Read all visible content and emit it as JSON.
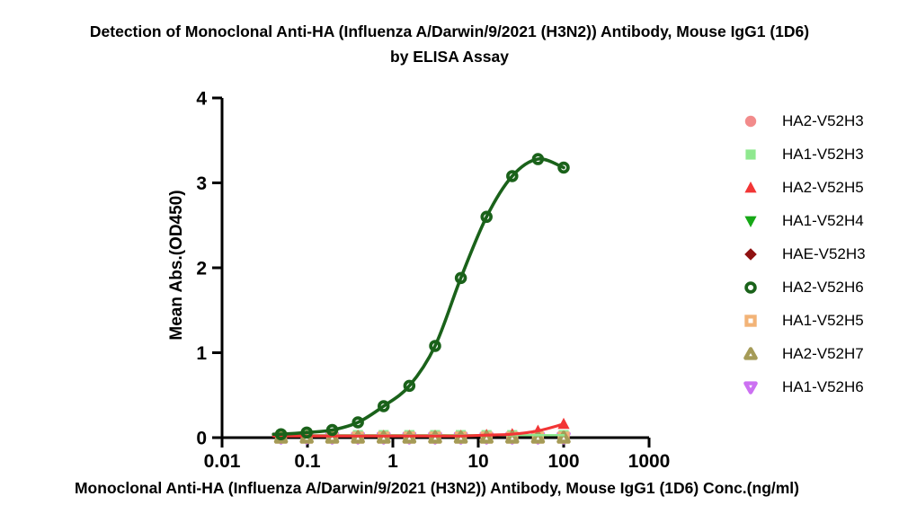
{
  "title": {
    "line1": "Detection of Monoclonal Anti-HA (Influenza A/Darwin/9/2021 (H3N2)) Antibody, Mouse IgG1 (1D6)",
    "line2": "by ELISA Assay"
  },
  "chart_data": {
    "type": "scatter",
    "title": "Detection of Monoclonal Anti-HA (Influenza A/Darwin/9/2021 (H3N2)) Antibody, Mouse IgG1 (1D6) by ELISA Assay",
    "xlabel": "Monoclonal Anti-HA (Influenza A/Darwin/9/2021 (H3N2)) Antibody, Mouse IgG1 (1D6) Conc.(ng/ml)",
    "ylabel": "Mean Abs.(OD450)",
    "x_scale": "log",
    "xlim": [
      0.01,
      1000
    ],
    "ylim": [
      0,
      4
    ],
    "x_ticks": [
      "0.01",
      "0.1",
      "1",
      "10",
      "100",
      "1000"
    ],
    "y_ticks": [
      "0",
      "1",
      "2",
      "3",
      "4"
    ],
    "grid": false,
    "legend_position": "right",
    "axis_color": "#000000",
    "x": [
      0.049,
      0.098,
      0.195,
      0.39,
      0.78,
      1.56,
      3.125,
      6.25,
      12.5,
      25,
      50,
      100
    ],
    "series": [
      {
        "name": "HA2-V52H3",
        "marker": "circle",
        "color": "#F28B8B",
        "line": false,
        "values": [
          0.02,
          0.02,
          0.02,
          0.02,
          0.02,
          0.02,
          0.02,
          0.02,
          0.02,
          0.02,
          0.02,
          0.02
        ]
      },
      {
        "name": "HA1-V52H3",
        "marker": "square",
        "color": "#8FE88F",
        "line": true,
        "values": [
          0.03,
          0.03,
          0.03,
          0.03,
          0.03,
          0.03,
          0.03,
          0.03,
          0.03,
          0.03,
          0.03,
          0.03
        ]
      },
      {
        "name": "HA2-V52H5",
        "marker": "triangle-up",
        "color": "#F23535",
        "line": true,
        "values": [
          0.02,
          0.02,
          0.02,
          0.02,
          0.02,
          0.02,
          0.02,
          0.02,
          0.03,
          0.04,
          0.08,
          0.16
        ]
      },
      {
        "name": "HA1-V52H4",
        "marker": "triangle-down",
        "color": "#16A816",
        "line": false,
        "values": [
          0.01,
          0.01,
          0.01,
          0.01,
          0.01,
          0.01,
          0.01,
          0.01,
          0.01,
          0.01,
          0.01,
          0.01
        ]
      },
      {
        "name": "HAE-V52H3",
        "marker": "diamond",
        "color": "#8F1111",
        "line": false,
        "values": [
          0.01,
          0.01,
          0.01,
          0.01,
          0.01,
          0.01,
          0.01,
          0.01,
          0.01,
          0.01,
          0.01,
          0.01
        ]
      },
      {
        "name": "HA2-V52H6",
        "marker": "circle-open",
        "color": "#1A621A",
        "line": true,
        "values": [
          0.04,
          0.06,
          0.09,
          0.18,
          0.37,
          0.61,
          1.08,
          1.88,
          2.6,
          3.08,
          3.28,
          3.18
        ]
      },
      {
        "name": "HA1-V52H5",
        "marker": "square-open",
        "color": "#F2B377",
        "line": false,
        "values": [
          0.0,
          0.0,
          0.0,
          0.0,
          0.0,
          0.0,
          0.0,
          0.0,
          0.0,
          0.0,
          0.0,
          0.0
        ]
      },
      {
        "name": "HA2-V52H7",
        "marker": "triangle-up-open",
        "color": "#A59B57",
        "line": false,
        "values": [
          0.0,
          0.0,
          0.0,
          0.0,
          0.0,
          0.0,
          0.0,
          0.0,
          0.0,
          0.0,
          0.0,
          0.0
        ]
      },
      {
        "name": "HA1-V52H6",
        "marker": "triangle-down-open",
        "color": "#CC70F2",
        "line": false,
        "values": [
          0.0,
          0.0,
          0.0,
          0.0,
          0.0,
          0.0,
          0.0,
          0.0,
          0.0,
          0.0,
          0.0,
          0.0
        ]
      }
    ],
    "draw_order": [
      0,
      1,
      3,
      4,
      8,
      2,
      6,
      7,
      5
    ]
  }
}
